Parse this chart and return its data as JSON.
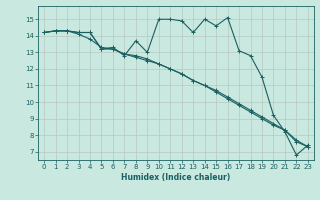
{
  "xlabel": "Humidex (Indice chaleur)",
  "background_color": "#c8e8e0",
  "grid_color": "#b8c8c0",
  "line_color": "#1a6060",
  "xlim": [
    -0.5,
    23.5
  ],
  "ylim": [
    6.5,
    15.8
  ],
  "xticks": [
    0,
    1,
    2,
    3,
    4,
    5,
    6,
    7,
    8,
    9,
    10,
    11,
    12,
    13,
    14,
    15,
    16,
    17,
    18,
    19,
    20,
    21,
    22,
    23
  ],
  "yticks": [
    7,
    8,
    9,
    10,
    11,
    12,
    13,
    14,
    15
  ],
  "series1_x": [
    0,
    1,
    2,
    3,
    4,
    5,
    6,
    7,
    8,
    9,
    10,
    11,
    12,
    13,
    14,
    15,
    16,
    17,
    18,
    19,
    20,
    21,
    22,
    23
  ],
  "series1_y": [
    14.2,
    14.3,
    14.3,
    14.2,
    14.2,
    13.2,
    13.3,
    12.8,
    13.7,
    13.0,
    15.0,
    15.0,
    14.9,
    14.2,
    15.0,
    14.6,
    15.1,
    13.1,
    12.8,
    11.5,
    9.2,
    8.2,
    6.8,
    7.4
  ],
  "series2_x": [
    0,
    1,
    2,
    3,
    4,
    5,
    6,
    7,
    8,
    9,
    10,
    11,
    12,
    13,
    14,
    15,
    16,
    17,
    18,
    19,
    20,
    21,
    22,
    23
  ],
  "series2_y": [
    14.2,
    14.3,
    14.3,
    14.1,
    13.8,
    13.3,
    13.2,
    12.9,
    12.8,
    12.6,
    12.3,
    12.0,
    11.7,
    11.3,
    11.0,
    10.6,
    10.2,
    9.8,
    9.4,
    9.0,
    8.6,
    8.3,
    7.6,
    7.3
  ],
  "series3_x": [
    0,
    1,
    2,
    3,
    4,
    5,
    6,
    7,
    8,
    9,
    10,
    11,
    12,
    13,
    14,
    15,
    16,
    17,
    18,
    19,
    20,
    21,
    22,
    23
  ],
  "series3_y": [
    14.2,
    14.3,
    14.3,
    14.2,
    14.2,
    13.2,
    13.2,
    12.9,
    12.7,
    12.5,
    12.3,
    12.0,
    11.7,
    11.3,
    11.0,
    10.7,
    10.3,
    9.9,
    9.5,
    9.1,
    8.7,
    8.3,
    7.7,
    7.3
  ]
}
